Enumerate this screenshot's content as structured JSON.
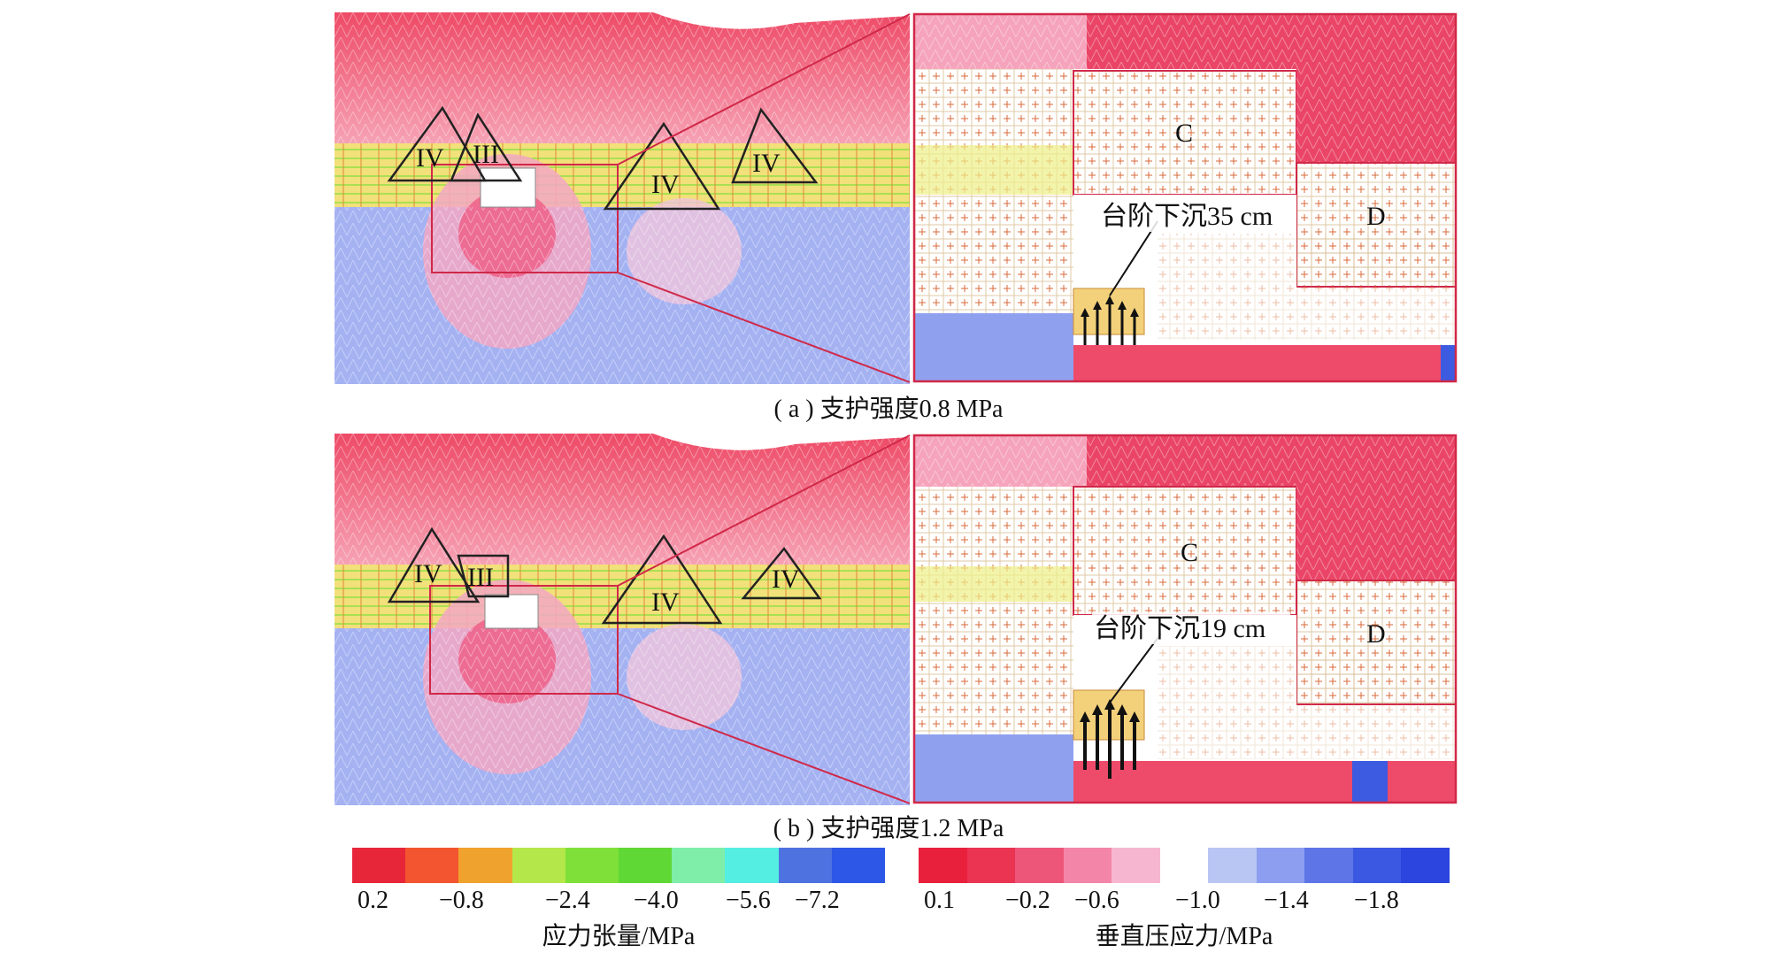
{
  "panels": [
    {
      "caption": "( a ) 支护强度0.8 MPa",
      "zone_labels": [
        "IV",
        "III",
        "IV",
        "IV"
      ],
      "block_labels": [
        "C",
        "D"
      ],
      "annotation": "台阶下沉35 cm"
    },
    {
      "caption": "( b ) 支护强度1.2 MPa",
      "zone_labels": [
        "IV",
        "III",
        "IV",
        "IV"
      ],
      "block_labels": [
        "C",
        "D"
      ],
      "annotation": "台阶下沉19 cm"
    }
  ],
  "legend_tension": {
    "title": "应力张量/MPa",
    "ticks": [
      "0.2",
      "−0.8",
      "−2.4",
      "−4.0",
      "−5.6",
      "−7.2"
    ],
    "colors": [
      "#e8263a",
      "#f2552f",
      "#f0a22e",
      "#b4e84a",
      "#7fe03a",
      "#5fd836",
      "#7eeea8",
      "#55eee2",
      "#4e72e0",
      "#2d57e6"
    ]
  },
  "legend_vertical": {
    "title": "垂直压应力/MPa",
    "ticks": [
      "0.1",
      "−0.2",
      "−0.6",
      "−1.0",
      "−1.4",
      "−1.8"
    ],
    "colors": [
      "#e8203c",
      "#ea3452",
      "#ee5679",
      "#f386a8",
      "#f7b6d0",
      "#ffffff",
      "#b9c6f3",
      "#8d9ef0",
      "#5d75e6",
      "#3b58e2",
      "#2c45de"
    ]
  },
  "colors": {
    "upper_rock": "#f06078",
    "coal_seam": "#f0d070",
    "floor": "#9aa8f0",
    "frame": "#d02848",
    "outline": "#222222"
  }
}
